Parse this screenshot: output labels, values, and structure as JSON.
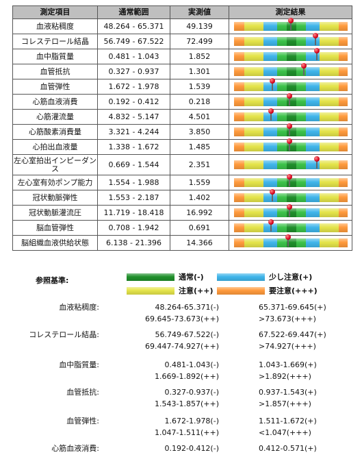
{
  "table": {
    "headers": [
      "測定項目",
      "通常範囲",
      "実測値",
      "測定結果"
    ],
    "rows": [
      {
        "item": "血液粘稠度",
        "range": "48.264 - 65.371",
        "value": "49.139",
        "marker": 0.5
      },
      {
        "item": "コレステロール結晶",
        "range": "56.749 - 67.522",
        "value": "72.499",
        "marker": 0.72
      },
      {
        "item": "血中脂質量",
        "range": "0.481 - 1.043",
        "value": "1.852",
        "marker": 0.73
      },
      {
        "item": "血管抵抗",
        "range": "0.327 - 0.937",
        "value": "1.301",
        "marker": 0.62
      },
      {
        "item": "血管弾性",
        "range": "1.672 - 1.978",
        "value": "1.539",
        "marker": 0.34
      },
      {
        "item": "心筋血液消費",
        "range": "0.192 - 0.412",
        "value": "0.218",
        "marker": 0.49
      },
      {
        "item": "心筋灌流量",
        "range": "4.832 - 5.147",
        "value": "4.501",
        "marker": 0.33
      },
      {
        "item": "心筋酸素消費量",
        "range": "3.321 - 4.244",
        "value": "3.850",
        "marker": 0.49
      },
      {
        "item": "心拍出血液量",
        "range": "1.338 - 1.672",
        "value": "1.485",
        "marker": 0.49
      },
      {
        "item": "左心室拍出インピーダンス",
        "range": "0.669 - 1.544",
        "value": "2.351",
        "marker": 0.73
      },
      {
        "item": "左心室有効ポンプ能力",
        "range": "1.554 - 1.988",
        "value": "1.559",
        "marker": 0.49
      },
      {
        "item": "冠状動脈弾性",
        "range": "1.553 - 2.187",
        "value": "1.402",
        "marker": 0.34
      },
      {
        "item": "冠状動脈灌流圧",
        "range": "11.719 - 18.418",
        "value": "16.992",
        "marker": 0.49
      },
      {
        "item": "脳血管弾性",
        "range": "0.708 - 1.942",
        "value": "0.691",
        "marker": 0.33
      },
      {
        "item": "脳組織血液供給状態",
        "range": "6.138 - 21.396",
        "value": "14.366",
        "marker": 0.48
      }
    ]
  },
  "legend": {
    "title": "参照基準:",
    "entries": [
      {
        "label": "通常(-)",
        "color": "#1f8f2b"
      },
      {
        "label": "少し注意(+)",
        "color": "#3fb5ea"
      },
      {
        "label": "注意(++)",
        "color": "#e4e44a"
      },
      {
        "label": "要注意(+++)",
        "color": "#ff9a3c"
      }
    ]
  },
  "reference": [
    {
      "name": "血液粘稠度:",
      "c1": [
        "48.264-65.371(-)",
        "69.645-73.673(++)"
      ],
      "c2": [
        "65.371-69.645(+)",
        ">73.673(+++)"
      ]
    },
    {
      "name": "コレステロール結晶:",
      "c1": [
        "56.749-67.522(-)",
        "69.447-74.927(++)"
      ],
      "c2": [
        "67.522-69.447(+)",
        ">74.927(+++)"
      ]
    },
    {
      "name": "血中脂質量:",
      "c1": [
        "0.481-1.043(-)",
        "1.669-1.892(++)"
      ],
      "c2": [
        "1.043-1.669(+)",
        ">1.892(+++)"
      ]
    },
    {
      "name": "血管抵抗:",
      "c1": [
        "0.327-0.937(-)",
        "1.543-1.857(++)"
      ],
      "c2": [
        "0.937-1.543(+)",
        ">1.857(+++)"
      ]
    },
    {
      "name": "血管弾性:",
      "c1": [
        "1.672-1.978(-)",
        "1.047-1.511(++)"
      ],
      "c2": [
        "1.511-1.672(+)",
        "<1.047(+++)"
      ]
    },
    {
      "name": "心筋血液消費:",
      "c1": [
        "0.192-0.412(-)"
      ],
      "c2": [
        "0.412-0.571(+)"
      ]
    }
  ]
}
